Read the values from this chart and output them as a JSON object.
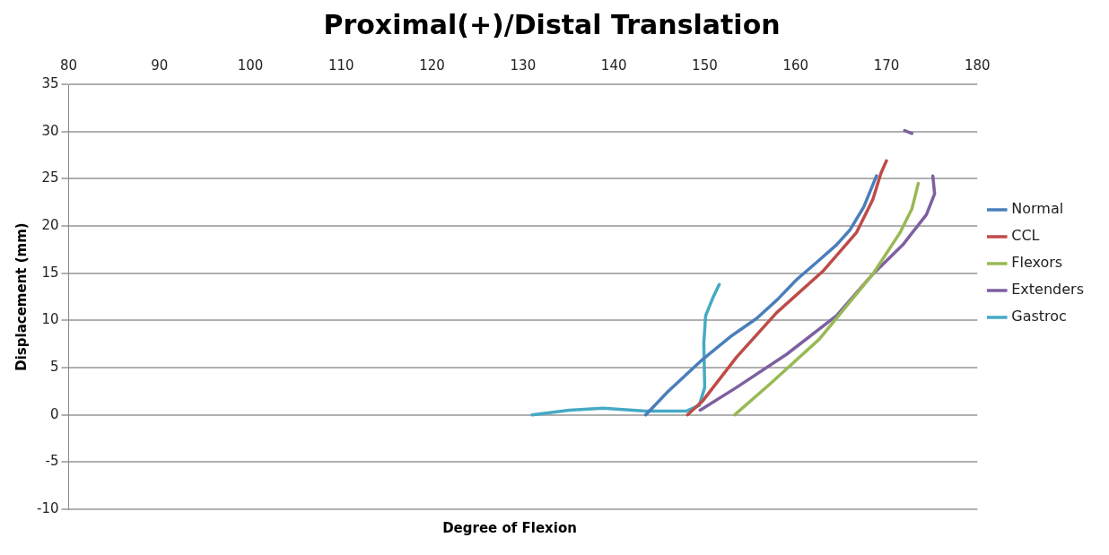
{
  "chart_data": {
    "type": "line",
    "title": "Proximal(+)/Distal Translation",
    "xlabel": "Degree of Flexion",
    "ylabel": "Displacement (mm)",
    "xlim": [
      80,
      180
    ],
    "xticks": [
      80,
      90,
      100,
      110,
      120,
      130,
      140,
      150,
      160,
      170,
      180
    ],
    "ylim": [
      -10,
      35
    ],
    "yticks": [
      -10,
      -5,
      0,
      5,
      10,
      15,
      20,
      25,
      30,
      35
    ],
    "grid": "y",
    "legend": "right",
    "marker": "none",
    "line_style": "solid",
    "series": [
      {
        "name": "Normal",
        "color": "#4a7ebb",
        "x": [
          143.5,
          146,
          149.8,
          153,
          155.7,
          158,
          160.1,
          162.5,
          164.5,
          166,
          167.5,
          168.9
        ],
        "values": [
          0,
          2.5,
          5.9,
          8.4,
          10.2,
          12.2,
          14.3,
          16.3,
          18,
          19.6,
          22,
          25.3
        ]
      },
      {
        "name": "CCL",
        "color": "#be4b48",
        "x": [
          148.1,
          149.8,
          153.5,
          157.9,
          163,
          166.7,
          168.5,
          169.4,
          170
        ],
        "values": [
          0,
          1.5,
          6.1,
          10.8,
          15.2,
          19.3,
          22.8,
          25.6,
          26.9
        ]
      },
      {
        "name": "Flexors",
        "color": "#98b954",
        "x": [
          153.3,
          157.1,
          162.6,
          168.5,
          171.5,
          172.8,
          173.5
        ],
        "values": [
          0,
          3.2,
          8,
          14.9,
          19.3,
          21.8,
          24.5
        ]
      },
      {
        "name": "Extenders",
        "color": "#7d60a0",
        "x": [
          149.5,
          153.5,
          159,
          164.5,
          168.5,
          171.8,
          174.4,
          175.3,
          175.1,
          173.7,
          172,
          172.8
        ],
        "values": [
          0.5,
          2.9,
          6.4,
          10.5,
          14.9,
          18,
          21.2,
          23.4,
          25.3,
          null,
          30.1,
          29.8
        ]
      },
      {
        "name": "Gastroc",
        "color": "#46aac5",
        "x": [
          131,
          135.1,
          138.8,
          143.5,
          148,
          149.4,
          150,
          149.9,
          150.1,
          150.9,
          151.6
        ],
        "values": [
          0,
          0.5,
          0.7,
          0.4,
          0.4,
          1,
          2.9,
          7.6,
          10.5,
          12.4,
          13.8
        ]
      }
    ]
  }
}
